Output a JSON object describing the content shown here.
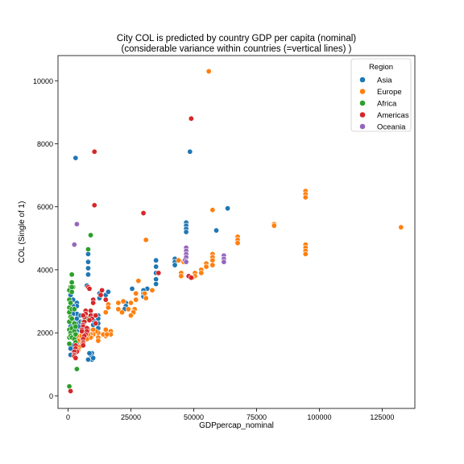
{
  "chart_data": {
    "type": "scatter",
    "title_line1": "City COL is predicted by country GDP per capita (nominal)",
    "title_line2": "(considerable variance within countries (=vertical lines) )",
    "xlabel": "GDPpercap_nominal",
    "ylabel": "COL (Single of 1)",
    "xlim": [
      -4000,
      138000
    ],
    "ylim": [
      -400,
      10800
    ],
    "xticks": [
      0,
      25000,
      50000,
      75000,
      100000,
      125000
    ],
    "xtick_labels": [
      "0",
      "25000",
      "50000",
      "75000",
      "100000",
      "125000"
    ],
    "yticks": [
      0,
      2000,
      4000,
      6000,
      8000,
      10000
    ],
    "ytick_labels": [
      "0",
      "2000",
      "4000",
      "6000",
      "8000",
      "10000"
    ],
    "grid": false,
    "legend": {
      "title": "Region",
      "placement": "top-right",
      "entries": [
        "Asia",
        "Europe",
        "Africa",
        "Americas",
        "Oceania"
      ]
    },
    "colors": {
      "Asia": "#1f77b4",
      "Europe": "#ff7f0e",
      "Africa": "#2ca02c",
      "Americas": "#d62728",
      "Oceania": "#9467bd"
    },
    "series": [
      {
        "name": "Asia",
        "points": [
          [
            3000,
            7550
          ],
          [
            48500,
            7750
          ],
          [
            63500,
            5950
          ],
          [
            59000,
            5250
          ],
          [
            47000,
            5500
          ],
          [
            47000,
            5400
          ],
          [
            47000,
            5300
          ],
          [
            47000,
            5200
          ],
          [
            42500,
            4350
          ],
          [
            42500,
            4250
          ],
          [
            42500,
            4150
          ],
          [
            35000,
            4300
          ],
          [
            35000,
            4100
          ],
          [
            35000,
            3900
          ],
          [
            35000,
            3700
          ],
          [
            35000,
            3550
          ],
          [
            31500,
            3400
          ],
          [
            30000,
            3350
          ],
          [
            30000,
            3250
          ],
          [
            30000,
            3150
          ],
          [
            23000,
            2950
          ],
          [
            23000,
            2850
          ],
          [
            22500,
            2750
          ],
          [
            25500,
            3400
          ],
          [
            12000,
            2550
          ],
          [
            12000,
            2450
          ],
          [
            12000,
            2300
          ],
          [
            12000,
            2150
          ],
          [
            10000,
            2550
          ],
          [
            10000,
            2400
          ],
          [
            10000,
            2250
          ],
          [
            9500,
            1350
          ],
          [
            9500,
            1250
          ],
          [
            9500,
            1150
          ],
          [
            10000,
            1200
          ],
          [
            8000,
            4500
          ],
          [
            8000,
            4250
          ],
          [
            8000,
            4050
          ],
          [
            8000,
            3850
          ],
          [
            7500,
            3500
          ],
          [
            3500,
            2950
          ],
          [
            3500,
            2850
          ],
          [
            3500,
            2600
          ],
          [
            3500,
            2450
          ],
          [
            3500,
            2300
          ],
          [
            3500,
            2150
          ],
          [
            3500,
            2050
          ],
          [
            3500,
            1950
          ],
          [
            3500,
            1800
          ],
          [
            3500,
            1650
          ],
          [
            3500,
            1500
          ],
          [
            3500,
            1450
          ],
          [
            2000,
            3050
          ],
          [
            2000,
            2850
          ],
          [
            2000,
            2600
          ],
          [
            2000,
            2350
          ],
          [
            2000,
            2100
          ],
          [
            2000,
            1850
          ],
          [
            2000,
            1600
          ],
          [
            2000,
            1450
          ],
          [
            2000,
            1350
          ],
          [
            1000,
            3200
          ],
          [
            1000,
            2750
          ],
          [
            1000,
            2200
          ],
          [
            1000,
            1500
          ],
          [
            1000,
            1300
          ],
          [
            4500,
            2200
          ],
          [
            4500,
            1900
          ],
          [
            5000,
            2550
          ],
          [
            5000,
            2350
          ],
          [
            6000,
            2250
          ],
          [
            12500,
            3250
          ],
          [
            12500,
            3100
          ],
          [
            15000,
            3200
          ],
          [
            16000,
            3300
          ],
          [
            8500,
            1350
          ],
          [
            8000,
            1150
          ]
        ]
      },
      {
        "name": "Europe",
        "points": [
          [
            56000,
            10300
          ],
          [
            57500,
            5900
          ],
          [
            132500,
            5350
          ],
          [
            94500,
            6500
          ],
          [
            94500,
            6400
          ],
          [
            94500,
            6300
          ],
          [
            82000,
            5450
          ],
          [
            82000,
            5400
          ],
          [
            67500,
            5050
          ],
          [
            67500,
            4950
          ],
          [
            67500,
            4850
          ],
          [
            94500,
            4800
          ],
          [
            94500,
            4700
          ],
          [
            94500,
            4600
          ],
          [
            94500,
            4500
          ],
          [
            57500,
            4500
          ],
          [
            57500,
            4400
          ],
          [
            57500,
            4300
          ],
          [
            57500,
            4150
          ],
          [
            55000,
            4200
          ],
          [
            55000,
            4100
          ],
          [
            53000,
            4000
          ],
          [
            53000,
            3900
          ],
          [
            50500,
            3900
          ],
          [
            50500,
            3800
          ],
          [
            49500,
            3750
          ],
          [
            45000,
            3900
          ],
          [
            45000,
            3800
          ],
          [
            44000,
            4300
          ],
          [
            46000,
            4250
          ],
          [
            31000,
            4950
          ],
          [
            28000,
            3650
          ],
          [
            27000,
            3250
          ],
          [
            27000,
            3050
          ],
          [
            26500,
            2750
          ],
          [
            26000,
            2650
          ],
          [
            25000,
            2550
          ],
          [
            25000,
            2950
          ],
          [
            24000,
            2750
          ],
          [
            22000,
            3000
          ],
          [
            20000,
            2950
          ],
          [
            20000,
            2750
          ],
          [
            21500,
            2650
          ],
          [
            16000,
            2900
          ],
          [
            16000,
            2800
          ],
          [
            15000,
            2650
          ],
          [
            15000,
            2100
          ],
          [
            17000,
            2050
          ],
          [
            17000,
            1950
          ],
          [
            15000,
            1900
          ],
          [
            12000,
            2000
          ],
          [
            12000,
            1850
          ],
          [
            12000,
            1750
          ],
          [
            11000,
            2050
          ],
          [
            10000,
            2100
          ],
          [
            10000,
            1950
          ],
          [
            9000,
            1950
          ],
          [
            9000,
            1850
          ],
          [
            8000,
            2100
          ],
          [
            8000,
            1950
          ],
          [
            7500,
            1800
          ],
          [
            6000,
            2000
          ],
          [
            6000,
            1800
          ],
          [
            5500,
            1650
          ],
          [
            5000,
            1900
          ],
          [
            4500,
            1550
          ],
          [
            4000,
            1450
          ],
          [
            4000,
            1750
          ],
          [
            3500,
            1900
          ],
          [
            33500,
            3350
          ],
          [
            30500,
            3250
          ],
          [
            31000,
            3100
          ],
          [
            14000,
            1950
          ],
          [
            15500,
            1950
          ]
        ]
      },
      {
        "name": "Africa",
        "points": [
          [
            9000,
            5100
          ],
          [
            8000,
            4650
          ],
          [
            1500,
            3850
          ],
          [
            1500,
            3600
          ],
          [
            1000,
            3450
          ],
          [
            500,
            3350
          ],
          [
            1500,
            3300
          ],
          [
            500,
            3050
          ],
          [
            500,
            2800
          ],
          [
            500,
            2650
          ],
          [
            500,
            2350
          ],
          [
            500,
            2100
          ],
          [
            500,
            1850
          ],
          [
            500,
            1650
          ],
          [
            1000,
            2950
          ],
          [
            1000,
            2500
          ],
          [
            1000,
            2000
          ],
          [
            1000,
            1900
          ],
          [
            1500,
            2750
          ],
          [
            1500,
            2450
          ],
          [
            1500,
            2150
          ],
          [
            1500,
            1850
          ],
          [
            2500,
            2750
          ],
          [
            2500,
            2300
          ],
          [
            2500,
            2050
          ],
          [
            2500,
            1800
          ],
          [
            3000,
            2200
          ],
          [
            3000,
            1950
          ],
          [
            3000,
            1700
          ],
          [
            2000,
            3450
          ],
          [
            1500,
            3450
          ],
          [
            3500,
            850
          ],
          [
            500,
            300
          ],
          [
            6000,
            2350
          ],
          [
            6000,
            2100
          ],
          [
            6500,
            2000
          ],
          [
            9000,
            2500
          ],
          [
            8000,
            2450
          ]
        ]
      },
      {
        "name": "Americas",
        "points": [
          [
            49000,
            8800
          ],
          [
            10500,
            7750
          ],
          [
            10500,
            6050
          ],
          [
            30000,
            5800
          ],
          [
            48000,
            3800
          ],
          [
            49000,
            3750
          ],
          [
            36000,
            3900
          ],
          [
            8000,
            3450
          ],
          [
            8500,
            3400
          ],
          [
            10000,
            3050
          ],
          [
            10000,
            2950
          ],
          [
            13500,
            3350
          ],
          [
            13000,
            3200
          ],
          [
            15000,
            3050
          ],
          [
            9000,
            2700
          ],
          [
            9000,
            2550
          ],
          [
            9500,
            2450
          ],
          [
            8500,
            2400
          ],
          [
            7000,
            2700
          ],
          [
            7000,
            2600
          ],
          [
            6500,
            2500
          ],
          [
            6000,
            2550
          ],
          [
            6500,
            2350
          ],
          [
            6000,
            2250
          ],
          [
            6000,
            2200
          ],
          [
            5500,
            2100
          ],
          [
            5500,
            2050
          ],
          [
            7500,
            2150
          ],
          [
            7500,
            2050
          ],
          [
            7000,
            1950
          ],
          [
            6500,
            1900
          ],
          [
            6000,
            1800
          ],
          [
            6000,
            1700
          ],
          [
            6000,
            1650
          ],
          [
            6000,
            1600
          ],
          [
            3000,
            1600
          ],
          [
            3000,
            1500
          ],
          [
            3500,
            1400
          ],
          [
            2500,
            1400
          ],
          [
            2500,
            1300
          ],
          [
            2500,
            1250
          ],
          [
            3000,
            1200
          ],
          [
            1000,
            150
          ],
          [
            11000,
            2550
          ],
          [
            11000,
            2300
          ]
        ]
      },
      {
        "name": "Oceania",
        "points": [
          [
            3500,
            5450
          ],
          [
            2500,
            4800
          ],
          [
            47000,
            4700
          ],
          [
            47000,
            4600
          ],
          [
            47000,
            4500
          ],
          [
            47000,
            4400
          ],
          [
            46500,
            4300
          ],
          [
            47000,
            4250
          ],
          [
            62000,
            4450
          ],
          [
            62000,
            4350
          ],
          [
            62000,
            4250
          ]
        ]
      }
    ]
  }
}
